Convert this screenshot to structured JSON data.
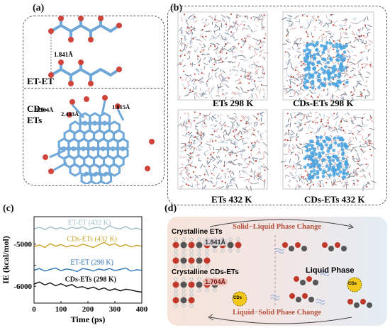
{
  "figure": {
    "panel_a": {
      "label": "(a)",
      "et_et_label": "ET-ET",
      "et_et_distance": "1.841Å",
      "cds_ets_label_line1": "CDs-",
      "cds_ets_label_line2": "ETs",
      "cds_distances": [
        "1.704Å",
        "2.403Å",
        "1.815Å"
      ]
    },
    "panel_b": {
      "label": "(b)",
      "boxes": [
        {
          "caption": "ETs 298 K"
        },
        {
          "caption": "CDs-ETs 298 K"
        },
        {
          "caption": "ETs 432 K"
        },
        {
          "caption": "CDs-ETs 432 K"
        }
      ]
    },
    "panel_c": {
      "label": "(c)"
    },
    "panel_d": {
      "label": "(d)",
      "crystalline_ets": "Crystalline ETs",
      "crystalline_ets_distance": "1.841Å",
      "crystalline_cds_ets": "Crystalline CDs-ETs",
      "crystalline_cds_distance": "1.704Å",
      "top_arrow_text": "Solid−Liquid Phase Change",
      "bottom_arrow_text": "Liquid−Solid Phase Change",
      "liquid_phase": "Liquid Phase",
      "cds_badge": "CDs"
    },
    "colors": {
      "carbon": "#5b9bd5",
      "oxygen": "#c0392b",
      "cd_blue": "#4aa3df",
      "series_et_432": "#9fbcc4",
      "series_cds_432": "#c9a227",
      "series_et_298": "#2e75b6",
      "series_cds_298": "#111111"
    }
  },
  "chart_data": {
    "type": "line",
    "xlabel": "Time (ps)",
    "ylabel": "IE (kcal/mol)",
    "xlim": [
      0,
      400
    ],
    "ylim": [
      -6400,
      -4350
    ],
    "xticks": [
      0,
      100,
      200,
      300,
      400
    ],
    "yticks": [
      -5000,
      -5500,
      -6000
    ],
    "yticks_labeled": [
      "-5000",
      "-6000"
    ],
    "series": [
      {
        "name": "ET-ET (432 K)",
        "color": "#9fbcc4",
        "x": [
          0,
          20,
          40,
          60,
          80,
          100,
          120,
          140,
          160,
          180,
          200,
          220,
          240,
          260,
          280,
          300,
          320,
          340,
          360,
          380,
          400
        ],
        "y": [
          -4640,
          -4600,
          -4660,
          -4590,
          -4640,
          -4610,
          -4650,
          -4600,
          -4630,
          -4590,
          -4660,
          -4620,
          -4600,
          -4650,
          -4560,
          -4620,
          -4640,
          -4580,
          -4650,
          -4620,
          -4660
        ]
      },
      {
        "name": "CDs-ETs (432 K)",
        "color": "#c9a227",
        "x": [
          0,
          20,
          40,
          60,
          80,
          100,
          120,
          140,
          160,
          180,
          200,
          220,
          240,
          260,
          280,
          300,
          320,
          340,
          360,
          380,
          400
        ],
        "y": [
          -5060,
          -5020,
          -5080,
          -4990,
          -5050,
          -5010,
          -5070,
          -5030,
          -5060,
          -5000,
          -5040,
          -5080,
          -5020,
          -4960,
          -5030,
          -4990,
          -5060,
          -5010,
          -5070,
          -5030,
          -5050
        ]
      },
      {
        "name": "ET-ET (298 K)",
        "color": "#2e75b6",
        "x": [
          0,
          20,
          40,
          60,
          80,
          100,
          120,
          140,
          160,
          180,
          200,
          220,
          240,
          260,
          280,
          300,
          320,
          340,
          360,
          380,
          400
        ],
        "y": [
          -5620,
          -5580,
          -5640,
          -5600,
          -5570,
          -5630,
          -5590,
          -5610,
          -5650,
          -5580,
          -5600,
          -5640,
          -5590,
          -5620,
          -5580,
          -5630,
          -5600,
          -5570,
          -5640,
          -5610,
          -5620
        ]
      },
      {
        "name": "CDs-ETs (298 K)",
        "color": "#111111",
        "x": [
          0,
          20,
          40,
          60,
          80,
          100,
          120,
          140,
          160,
          180,
          200,
          220,
          240,
          260,
          280,
          300,
          320,
          340,
          360,
          380,
          400
        ],
        "y": [
          -5950,
          -5900,
          -5970,
          -5920,
          -5990,
          -5940,
          -6000,
          -5960,
          -6030,
          -6010,
          -6060,
          -6020,
          -6080,
          -6040,
          -6100,
          -6060,
          -6110,
          -6070,
          -6090,
          -6120,
          -6140
        ]
      }
    ],
    "annotations": [
      "ET-ET (432 K)",
      "CDs-ETs (432 K)",
      "ET-ET (298 K)",
      "CDs-ETs (298 K)"
    ]
  }
}
